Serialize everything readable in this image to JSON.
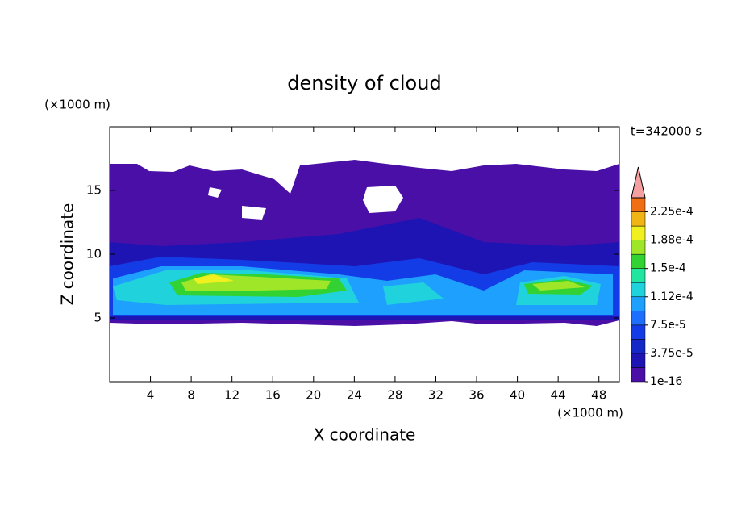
{
  "chart_data": {
    "type": "contour",
    "title": "density of cloud",
    "x_label": "X coordinate",
    "y_label": "Z coordinate",
    "x_unit": "(×1000 m)",
    "y_unit": "(×1000 m)",
    "annotation": "t=342000 s",
    "xlim": [
      0,
      50
    ],
    "ylim": [
      0,
      20
    ],
    "xticks": [
      4,
      8,
      12,
      16,
      20,
      24,
      28,
      32,
      36,
      40,
      44,
      48
    ],
    "yticks": [
      5,
      10,
      15
    ],
    "levels": [
      1e-16,
      1.875e-05,
      3.75e-05,
      5.625e-05,
      7.5e-05,
      9.375e-05,
      0.0001125,
      0.00013125,
      0.00015,
      0.00016875,
      0.0001875,
      0.00020625,
      0.000225,
      0.00024375
    ],
    "colors": [
      "#4a0fa6",
      "#1e14b4",
      "#1428c8",
      "#143ce6",
      "#1e6eff",
      "#1ea0ff",
      "#20d2dc",
      "#20e6a0",
      "#32d232",
      "#a0e628",
      "#f0f01e",
      "#f0b414",
      "#f06e14"
    ],
    "extend_color": "#f4a0a0",
    "colorbar_ticks": [
      {
        "value": 1e-16,
        "label": "1e-16"
      },
      {
        "value": 3.75e-05,
        "label": "3.75e-5"
      },
      {
        "value": 7.5e-05,
        "label": "7.5e-5"
      },
      {
        "value": 0.0001125,
        "label": "1.12e-4"
      },
      {
        "value": 0.00015,
        "label": "1.5e-4"
      },
      {
        "value": 0.0001875,
        "label": "1.88e-4"
      },
      {
        "value": 0.000225,
        "label": "2.25e-4"
      }
    ]
  }
}
